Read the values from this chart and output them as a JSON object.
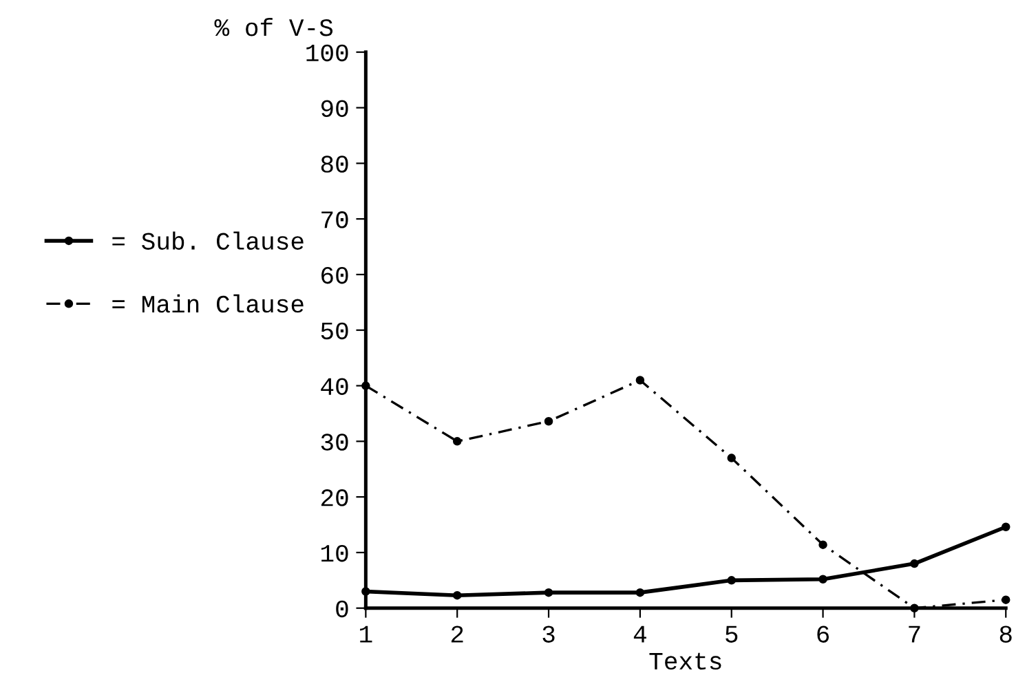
{
  "chart_data": {
    "type": "line",
    "ylabel": "% of V-S",
    "xlabel": "Texts",
    "x": [
      1,
      2,
      3,
      4,
      5,
      6,
      7,
      8
    ],
    "series": [
      {
        "name": "= Sub. Clause",
        "color": "#000000",
        "line_style": "solid",
        "values": [
          3,
          2.3,
          2.8,
          2.8,
          5,
          5.2,
          8,
          14.6
        ]
      },
      {
        "name": "= Main Clause",
        "color": "#000000",
        "line_style": "dashed",
        "values": [
          40,
          30,
          33.6,
          41,
          27,
          11.4,
          0,
          1.5
        ]
      }
    ],
    "xlim": [
      1,
      8
    ],
    "ylim": [
      0,
      100
    ],
    "xticks": [
      1,
      2,
      3,
      4,
      5,
      6,
      7,
      8
    ],
    "yticks": [
      0,
      10,
      20,
      30,
      40,
      50,
      60,
      70,
      80,
      90,
      100
    ],
    "marker": "circle",
    "grid": false,
    "legend": "left"
  }
}
